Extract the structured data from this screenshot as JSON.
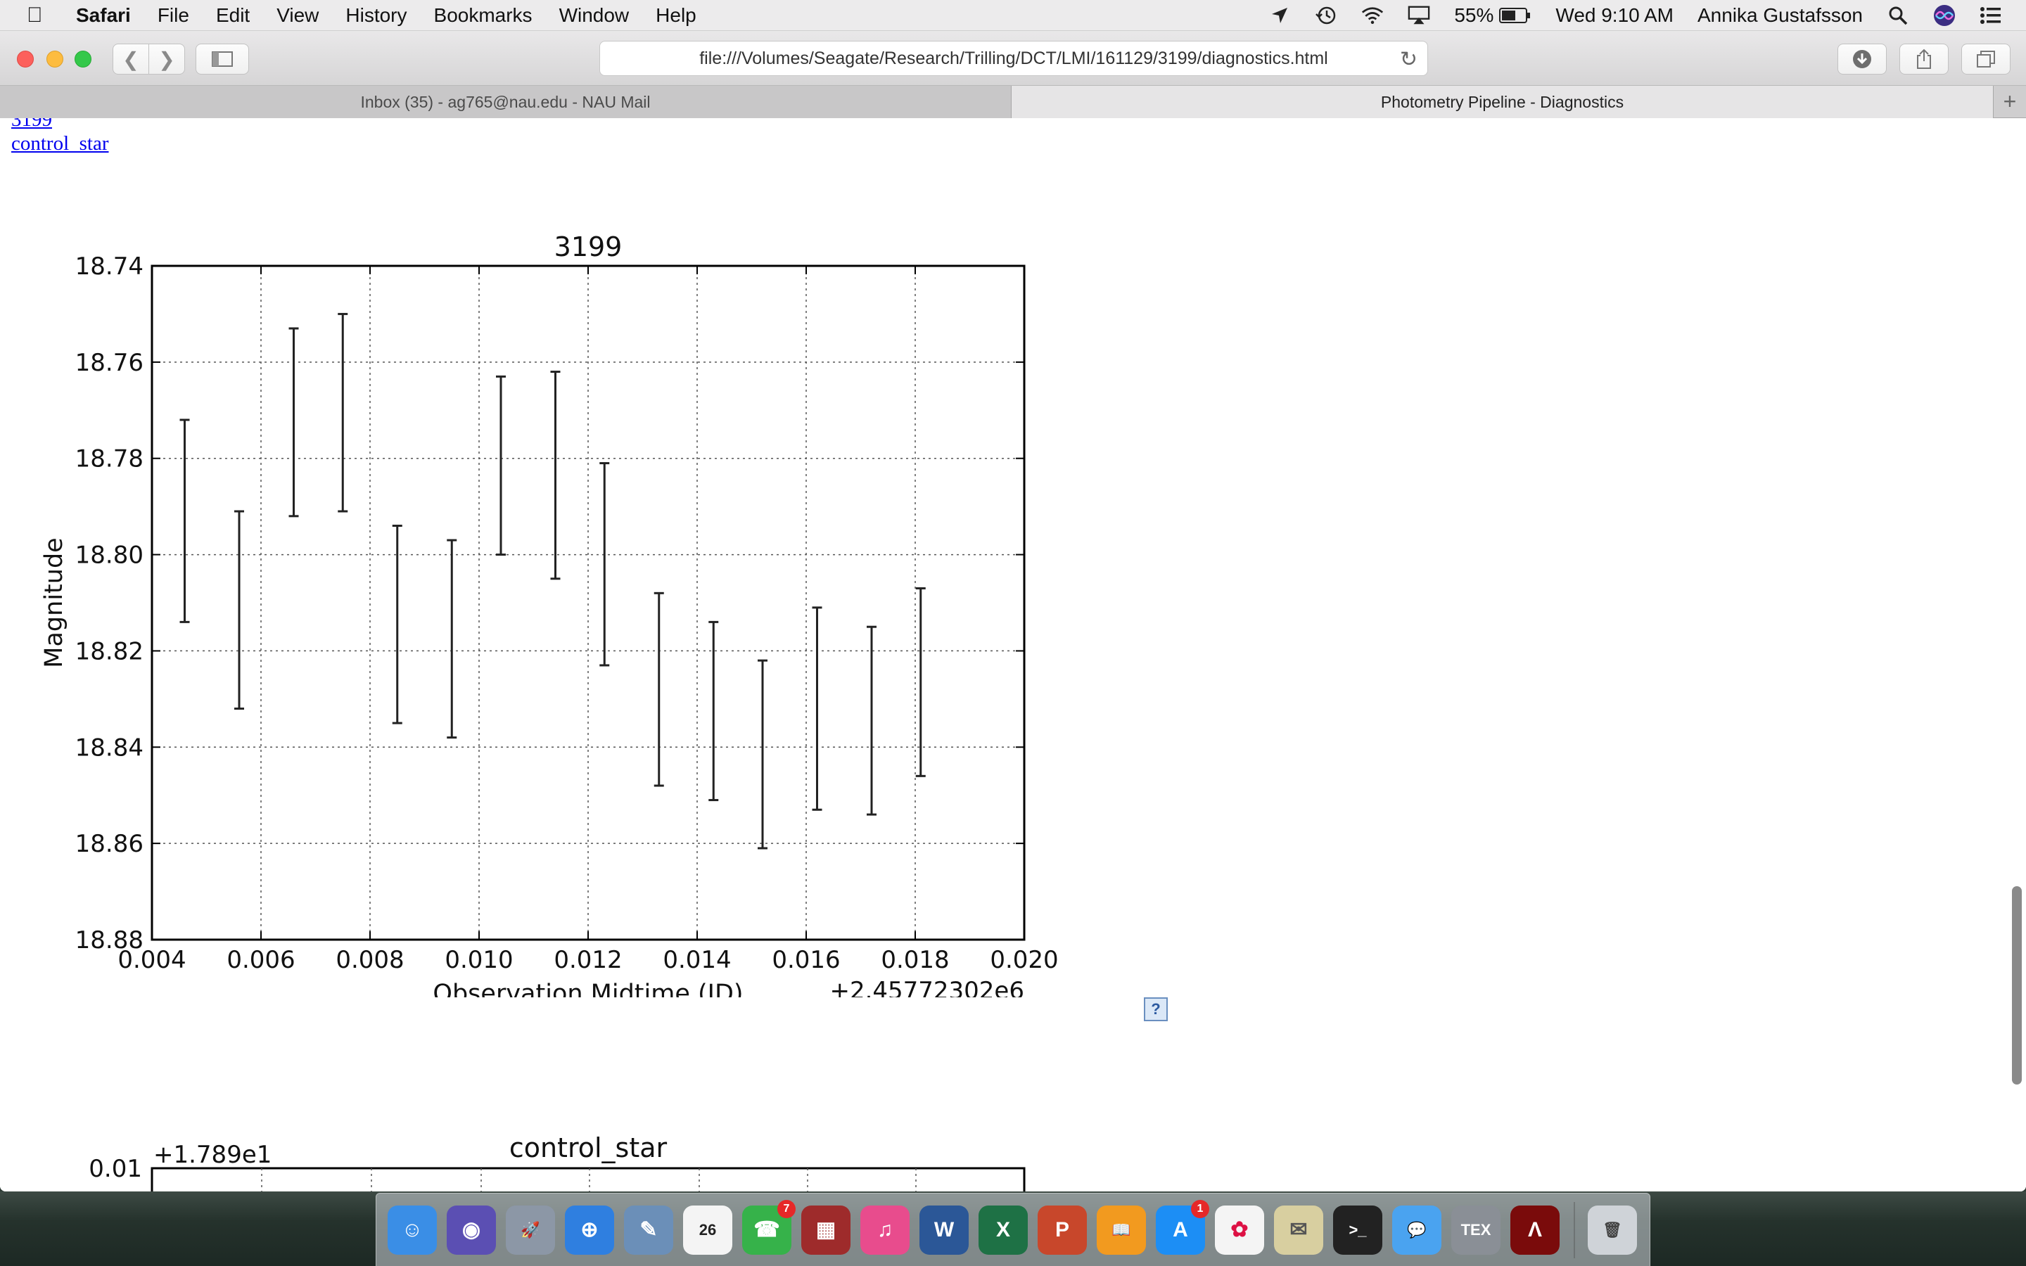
{
  "menubar": {
    "app_name": "Safari",
    "items": [
      "File",
      "Edit",
      "View",
      "History",
      "Bookmarks",
      "Window",
      "Help"
    ],
    "battery": "55%",
    "clock": "Wed 9:10 AM",
    "user": "Annika Gustafsson"
  },
  "toolbar": {
    "url": "file:///Volumes/Seagate/Research/Trilling/DCT/LMI/161129/3199/diagnostics.html"
  },
  "tabs": [
    {
      "label": "Inbox (35) - ag765@nau.edu - NAU Mail",
      "active": false
    },
    {
      "label": "Photometry Pipeline - Diagnostics",
      "active": true
    }
  ],
  "links": {
    "first": "3199",
    "second": "control_star"
  },
  "chart_data": [
    {
      "type": "scatter",
      "title": "3199",
      "xlabel": "Observation Midtime (JD)",
      "ylabel": "Magnitude",
      "x_offset_label": "+2.45772302e6",
      "xlim": [
        0.004,
        0.02
      ],
      "ylim": [
        18.88,
        18.74
      ],
      "y_inverted": true,
      "grid": true,
      "xticks": [
        "0.004",
        "0.006",
        "0.008",
        "0.010",
        "0.012",
        "0.014",
        "0.016",
        "0.018",
        "0.020"
      ],
      "yticks": [
        "18.74",
        "18.76",
        "18.78",
        "18.80",
        "18.82",
        "18.84",
        "18.86",
        "18.88"
      ],
      "errorbars": [
        {
          "x": 0.0046,
          "low": 18.772,
          "high": 18.814
        },
        {
          "x": 0.0056,
          "low": 18.791,
          "high": 18.832
        },
        {
          "x": 0.0066,
          "low": 18.753,
          "high": 18.792
        },
        {
          "x": 0.0075,
          "low": 18.75,
          "high": 18.791
        },
        {
          "x": 0.0085,
          "low": 18.794,
          "high": 18.835
        },
        {
          "x": 0.0095,
          "low": 18.797,
          "high": 18.838
        },
        {
          "x": 0.0104,
          "low": 18.763,
          "high": 18.8
        },
        {
          "x": 0.0114,
          "low": 18.762,
          "high": 18.805
        },
        {
          "x": 0.0123,
          "low": 18.781,
          "high": 18.823
        },
        {
          "x": 0.0133,
          "low": 18.808,
          "high": 18.848
        },
        {
          "x": 0.0143,
          "low": 18.814,
          "high": 18.851
        },
        {
          "x": 0.0152,
          "low": 18.822,
          "high": 18.861
        },
        {
          "x": 0.0162,
          "low": 18.811,
          "high": 18.853
        },
        {
          "x": 0.0172,
          "low": 18.815,
          "high": 18.854
        },
        {
          "x": 0.0181,
          "low": 18.807,
          "high": 18.846
        }
      ]
    },
    {
      "type": "scatter",
      "title": "control_star",
      "y_offset_label": "+1.789e1",
      "yticks": [
        "0.01"
      ],
      "grid": true
    }
  ],
  "dock": [
    {
      "name": "finder",
      "color": "#3a8ee6",
      "glyph": "☺"
    },
    {
      "name": "siri",
      "color": "#5b4fb3",
      "glyph": "◉"
    },
    {
      "name": "launchpad",
      "color": "#8c97a6",
      "glyph": "🚀"
    },
    {
      "name": "safari",
      "color": "#2f7fe0",
      "glyph": "⊕"
    },
    {
      "name": "preview",
      "color": "#6b8fb8",
      "glyph": "✎"
    },
    {
      "name": "calendar",
      "color": "#f4f4f4",
      "glyph": "26",
      "text": "#222"
    },
    {
      "name": "facetime",
      "color": "#36b24a",
      "glyph": "☎",
      "badge": "7"
    },
    {
      "name": "photo-booth",
      "color": "#9e2b2b",
      "glyph": "▦"
    },
    {
      "name": "itunes",
      "color": "#e84c8d",
      "glyph": "♫"
    },
    {
      "name": "word",
      "color": "#2b5797",
      "glyph": "W"
    },
    {
      "name": "excel",
      "color": "#1e7145",
      "glyph": "X"
    },
    {
      "name": "powerpoint",
      "color": "#c8472b",
      "glyph": "P"
    },
    {
      "name": "ibooks",
      "color": "#f29a1f",
      "glyph": "📖"
    },
    {
      "name": "app-store",
      "color": "#1c8ef5",
      "glyph": "A",
      "badge": "1"
    },
    {
      "name": "photos",
      "color": "#f4f4f4",
      "glyph": "✿",
      "text": "#d14"
    },
    {
      "name": "keynote-viewer",
      "color": "#d8cfa0",
      "glyph": "✉",
      "text": "#555"
    },
    {
      "name": "terminal",
      "color": "#222222",
      "glyph": ">_"
    },
    {
      "name": "messages",
      "color": "#4aa3f0",
      "glyph": "💬"
    },
    {
      "name": "texshop",
      "color": "#8a8f96",
      "glyph": "TEX"
    },
    {
      "name": "acrobat",
      "color": "#7a0b0b",
      "glyph": "Ʌ"
    },
    {
      "name": "trash",
      "color": "#cfd3d8",
      "glyph": "🗑",
      "text": "#444"
    }
  ],
  "icons": [
    "apple-icon",
    "location-icon",
    "time-machine-icon",
    "wifi-icon",
    "airplay-icon",
    "battery-icon",
    "spotlight-icon",
    "siri-icon",
    "notification-center-icon"
  ]
}
